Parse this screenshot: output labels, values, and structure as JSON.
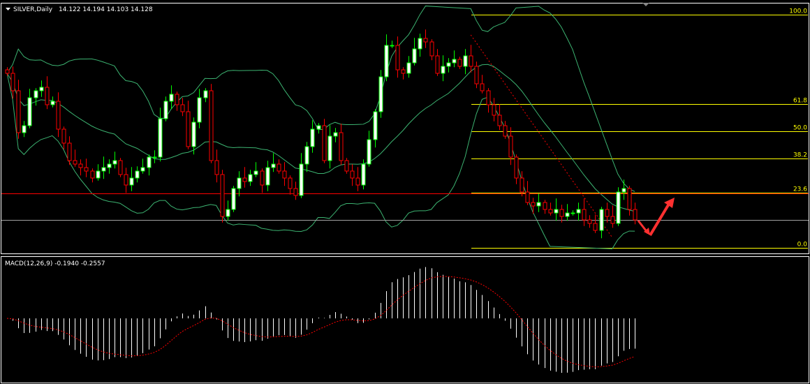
{
  "header": {
    "symbol_label": "SILVER,Daily",
    "ohlc_text": "14.122 14.194 14.103 14.128"
  },
  "macd_panel": {
    "label": "MACD(12,26,9) -0.1940 -0.2557"
  },
  "colors": {
    "background": "#000000",
    "bull_outline": "#00ff00",
    "bear_outline": "#ff0000",
    "bollinger": "#3cb371",
    "fibo": "#ffff00",
    "support_line": "#ff0000",
    "price_line": "#a0a0a0",
    "macd_histogram": "#ffffff",
    "macd_signal": "#ff0000",
    "arrow": "#ff3030"
  },
  "chart_data": {
    "type": "candlestick",
    "symbol": "SILVER",
    "timeframe": "Daily",
    "ylim": [
      13.932,
      15.372
    ],
    "closes": [
      14.968,
      14.868,
      14.628,
      14.668,
      14.828,
      14.868,
      14.888,
      14.788,
      14.808,
      14.648,
      14.568,
      14.468,
      14.448,
      14.428,
      14.408,
      14.368,
      14.408,
      14.428,
      14.448,
      14.468,
      14.388,
      14.328,
      14.368,
      14.408,
      14.428,
      14.488,
      14.488,
      14.708,
      14.808,
      14.848,
      14.788,
      14.748,
      14.548,
      14.688,
      14.828,
      14.868,
      14.468,
      14.388,
      14.148,
      14.188,
      14.308,
      14.368,
      14.348,
      14.388,
      14.408,
      14.328,
      14.428,
      14.448,
      14.408,
      14.368,
      14.308,
      14.268,
      14.448,
      14.548,
      14.648,
      14.668,
      14.468,
      14.608,
      14.628,
      14.468,
      14.408,
      14.368,
      14.328,
      14.448,
      14.588,
      14.748,
      14.948,
      15.128,
      15.128,
      14.988,
      14.968,
      15.028,
      15.108,
      15.168,
      15.148,
      15.068,
      14.968,
      15.008,
      15.028,
      15.048,
      15.008,
      15.068,
      15.008,
      14.908,
      14.868,
      14.788,
      14.728,
      14.668,
      14.608,
      14.488,
      14.368,
      14.288,
      14.228,
      14.208,
      14.228,
      14.188,
      14.168,
      14.188,
      14.148,
      14.168,
      14.168,
      14.188,
      14.128,
      14.108,
      14.068,
      14.188,
      14.148,
      14.108,
      14.288,
      14.308,
      14.188,
      14.128
    ],
    "indicators": {
      "bollinger_bands": {
        "period": 20,
        "deviations": 2
      },
      "macd": {
        "fast": 12,
        "slow": 26,
        "signal": 9,
        "main": -0.194,
        "signal_value": -0.2557
      }
    },
    "fibonacci": {
      "price_0": 13.968,
      "price_100": 15.304,
      "levels": [
        {
          "ratio": 1.0,
          "label": "100.0"
        },
        {
          "ratio": 0.618,
          "label": "61.8"
        },
        {
          "ratio": 0.5,
          "label": "50.0"
        },
        {
          "ratio": 0.382,
          "label": "38.2"
        },
        {
          "ratio": 0.236,
          "label": "23.6"
        },
        {
          "ratio": 0.0,
          "label": "0.0"
        }
      ]
    },
    "support_level": 14.28,
    "last_price": 14.128,
    "trendline": {
      "from_index": 82,
      "from_price": 15.188,
      "to_index": 107,
      "to_price": 14.028
    }
  }
}
